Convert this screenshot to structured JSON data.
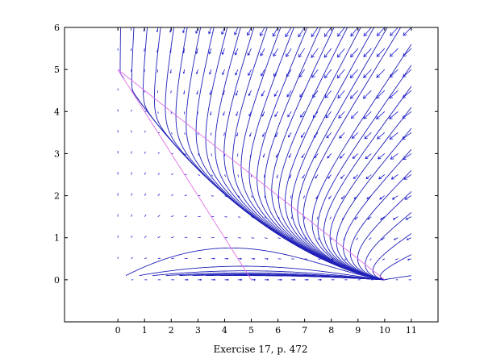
{
  "chart_data": {
    "type": "line",
    "title": "",
    "xlabel": "Exercise 17, p. 472",
    "ylabel": "",
    "xlim": [
      -2,
      12
    ],
    "ylim": [
      -1,
      6
    ],
    "x_ticks": [
      "0",
      "1",
      "2",
      "3",
      "4",
      "5",
      "6",
      "7",
      "8",
      "9",
      "10",
      "11"
    ],
    "y_ticks": [
      "0",
      "1",
      "2",
      "3",
      "4",
      "5",
      "6"
    ],
    "grid": false,
    "legend": "none",
    "field_range": {
      "x": [
        0,
        11
      ],
      "y": [
        0,
        6
      ]
    },
    "series": [
      {
        "kind": "direction-field",
        "color": "#1a1ad2"
      },
      {
        "kind": "nullcline",
        "points": [
          [
            0,
            5
          ],
          [
            5,
            0
          ]
        ],
        "color": "#e070e8"
      },
      {
        "kind": "nullcline",
        "points": [
          [
            0,
            5
          ],
          [
            10,
            0
          ]
        ],
        "color": "#e070e8"
      },
      {
        "kind": "solution-curves",
        "color": "#2020b8",
        "equilibrium": [
          0,
          5
        ]
      }
    ]
  }
}
